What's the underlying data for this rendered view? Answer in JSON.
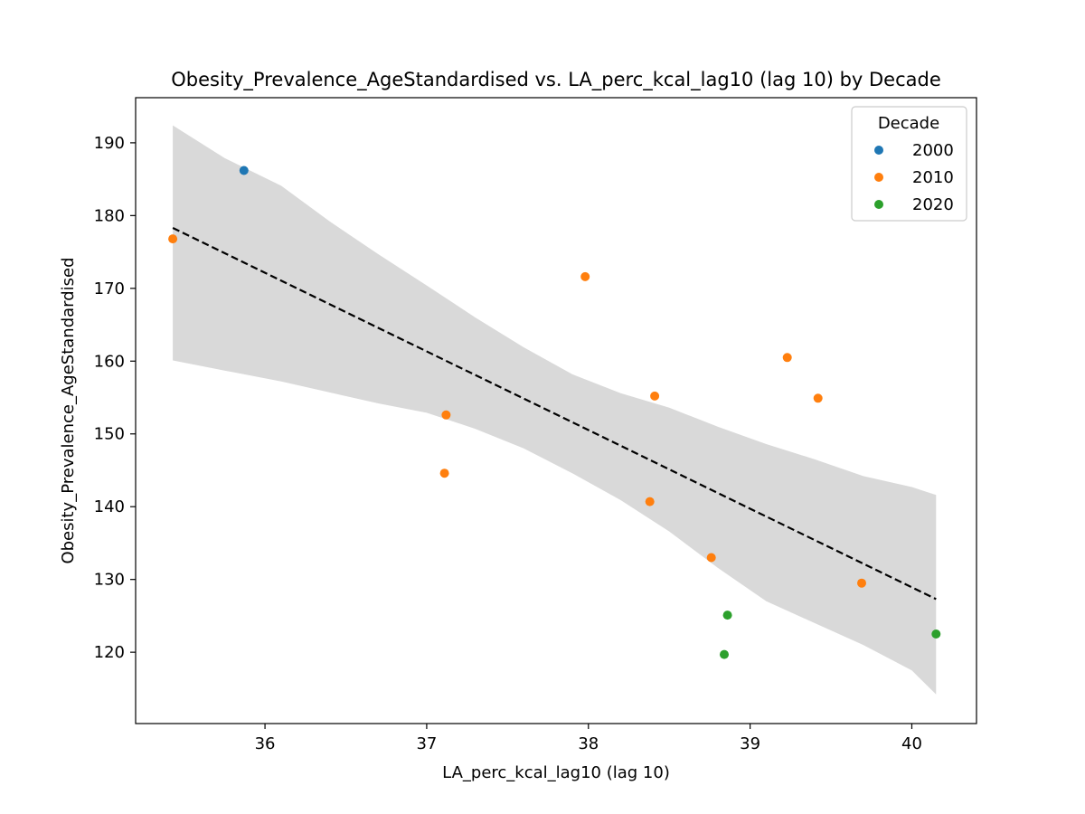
{
  "chart_data": {
    "type": "scatter",
    "title": "Obesity_Prevalence_AgeStandardised vs. LA_perc_kcal_lag10 (lag 10) by Decade",
    "xlabel": "LA_perc_kcal_lag10 (lag 10)",
    "ylabel": "Obesity_Prevalence_AgeStandardised",
    "xlim": [
      35.2,
      40.4
    ],
    "ylim": [
      110.2,
      196.2
    ],
    "xticks": [
      36,
      37,
      38,
      39,
      40
    ],
    "yticks": [
      120,
      130,
      140,
      150,
      160,
      170,
      180,
      190
    ],
    "grid": false,
    "legend": {
      "title": "Decade",
      "placement": "top-right"
    },
    "series": [
      {
        "name": "2000",
        "color": "#1f77b4",
        "points": [
          {
            "x": 35.87,
            "y": 186.2
          }
        ]
      },
      {
        "name": "2010",
        "color": "#ff7f0e",
        "points": [
          {
            "x": 35.43,
            "y": 176.8
          },
          {
            "x": 37.12,
            "y": 152.6
          },
          {
            "x": 37.11,
            "y": 144.6
          },
          {
            "x": 37.98,
            "y": 171.6
          },
          {
            "x": 38.41,
            "y": 155.2
          },
          {
            "x": 38.38,
            "y": 140.7
          },
          {
            "x": 38.76,
            "y": 133.0
          },
          {
            "x": 39.23,
            "y": 160.5
          },
          {
            "x": 39.42,
            "y": 154.9
          },
          {
            "x": 39.69,
            "y": 129.5
          }
        ]
      },
      {
        "name": "2020",
        "color": "#2ca02c",
        "points": [
          {
            "x": 38.86,
            "y": 125.1
          },
          {
            "x": 38.84,
            "y": 119.7
          },
          {
            "x": 40.15,
            "y": 122.5
          }
        ]
      }
    ],
    "regression_line": {
      "color": "#000000",
      "style": "dashed",
      "points": [
        {
          "x": 35.43,
          "y": 178.3
        },
        {
          "x": 40.15,
          "y": 127.3
        }
      ]
    },
    "confidence_band": {
      "color": "#d9d9d9",
      "x": [
        35.43,
        35.75,
        36.1,
        36.4,
        36.7,
        37.0,
        37.3,
        37.6,
        37.9,
        38.2,
        38.5,
        38.8,
        39.1,
        39.4,
        39.7,
        40.0,
        40.15
      ],
      "upper": [
        192.4,
        187.9,
        184.1,
        179.2,
        174.7,
        170.4,
        166.0,
        161.9,
        158.2,
        155.6,
        153.6,
        151.0,
        148.6,
        146.5,
        144.2,
        142.7,
        141.6
      ],
      "lower": [
        160.1,
        158.7,
        157.2,
        155.7,
        154.2,
        152.9,
        150.7,
        148.0,
        144.6,
        140.9,
        136.6,
        131.6,
        127.0,
        124.0,
        121.0,
        117.5,
        114.2
      ]
    }
  }
}
